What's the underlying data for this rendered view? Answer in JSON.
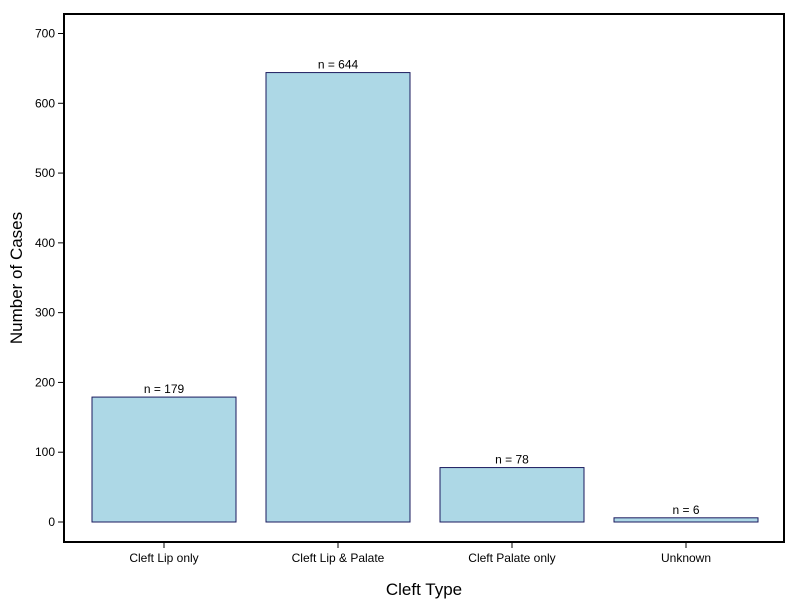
{
  "chart_data": {
    "type": "bar",
    "categories": [
      "Cleft Lip only",
      "Cleft Lip & Palate",
      "Cleft Palate only",
      "Unknown"
    ],
    "values": [
      179,
      644,
      78,
      6
    ],
    "data_labels": [
      "n =  179",
      "n =  644",
      "n =  78",
      "n =  6"
    ],
    "xlabel": "Cleft Type",
    "ylabel": "Number of Cases",
    "ylim": [
      0,
      700
    ],
    "yticks": [
      0,
      100,
      200,
      300,
      400,
      500,
      600,
      700
    ],
    "ytick_labels": [
      "0",
      "100",
      "200",
      "300",
      "400",
      "500",
      "600",
      "700"
    ],
    "grid": false,
    "bar_fill": "#add8e6",
    "bar_stroke": "#1a1a5e"
  }
}
